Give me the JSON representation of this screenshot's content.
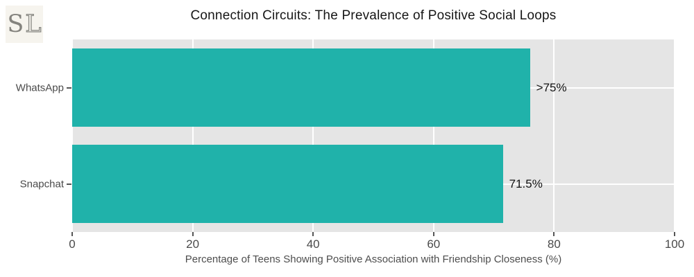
{
  "logo": {
    "text_s": "S",
    "text_l": "L",
    "background": "#f6f4ee",
    "letter_color": "#84837e"
  },
  "chart_data": {
    "type": "bar",
    "orientation": "horizontal",
    "title": "Connection Circuits: The Prevalence of Positive Social Loops",
    "xlabel": "Percentage of Teens Showing Positive Association with Friendship Closeness (%)",
    "ylabel": "",
    "categories": [
      "WhatsApp",
      "Snapchat"
    ],
    "values": [
      76,
      71.5
    ],
    "value_labels": [
      ">75%",
      "71.5%"
    ],
    "xlim": [
      0,
      100
    ],
    "xticks": [
      0,
      20,
      40,
      60,
      80,
      100
    ],
    "grid": true,
    "legend": false,
    "bar_color": "#20B2AA",
    "plot_bg": "#e5e5e5",
    "grid_color": "#ffffff",
    "tick_color": "#555555",
    "bar_height_frac": 0.406
  }
}
